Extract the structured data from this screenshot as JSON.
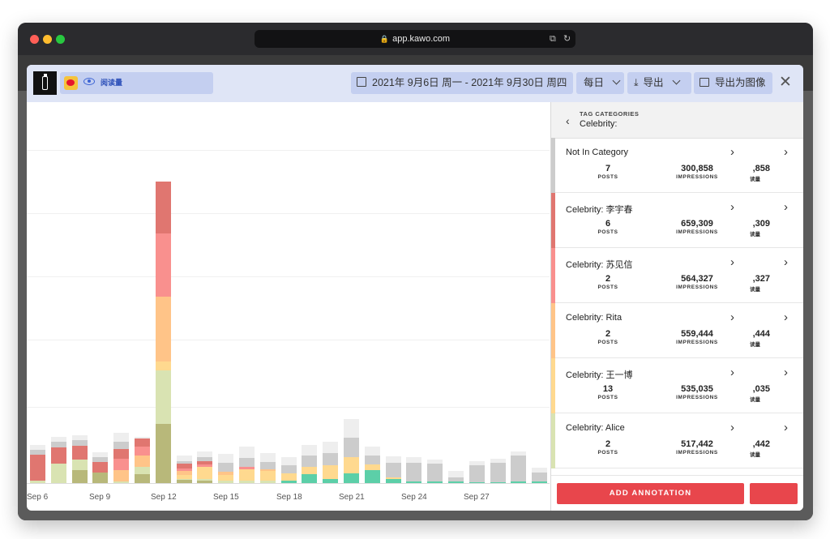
{
  "browser": {
    "url": "app.kawo.com",
    "traffic_lights": [
      "#ff5f57",
      "#febc2e",
      "#28c840"
    ]
  },
  "modal": {
    "metric_label": "阅读量",
    "date_range": "2021年 9月6日 周一 - 2021年 9月30日 周四",
    "interval": "每日",
    "export_label": "导出",
    "export_image_label": "导出为图像",
    "close": "✕"
  },
  "chart_data": {
    "type": "bar",
    "stacked": true,
    "x_tick_labels": [
      "Sep 6",
      "Sep 9",
      "Sep 12",
      "Sep 15",
      "Sep 18",
      "Sep 21",
      "Sep 24",
      "Sep 27"
    ],
    "categories": [
      "Sep 6",
      "Sep 7",
      "Sep 8",
      "Sep 9",
      "Sep 10",
      "Sep 11",
      "Sep 12",
      "Sep 13",
      "Sep 14",
      "Sep 15",
      "Sep 16",
      "Sep 17",
      "Sep 18",
      "Sep 19",
      "Sep 20",
      "Sep 21",
      "Sep 22",
      "Sep 23",
      "Sep 24",
      "Sep 25",
      "Sep 26",
      "Sep 27",
      "Sep 28",
      "Sep 29",
      "Sep 30"
    ],
    "ylim": [
      0,
      460
    ],
    "series": [
      {
        "color": "#b8b87a",
        "values": [
          0,
          0,
          18,
          14,
          0,
          12,
          80,
          4,
          3,
          0,
          0,
          0,
          0,
          0,
          0,
          0,
          0,
          0,
          0,
          0,
          0,
          0,
          0,
          0,
          0
        ]
      },
      {
        "color": "#5ccfa8",
        "values": [
          0,
          0,
          0,
          0,
          0,
          0,
          0,
          0,
          0,
          0,
          0,
          0,
          3,
          12,
          6,
          13,
          18,
          5,
          2,
          2,
          2,
          1,
          1,
          2,
          2
        ]
      },
      {
        "color": "#d9e3b2",
        "values": [
          3,
          26,
          14,
          0,
          2,
          10,
          73,
          2,
          3,
          3,
          3,
          3,
          0,
          0,
          0,
          0,
          0,
          0,
          0,
          0,
          0,
          0,
          0,
          0,
          0
        ]
      },
      {
        "color": "#ffd98f",
        "values": [
          0,
          0,
          0,
          0,
          0,
          0,
          12,
          5,
          16,
          8,
          16,
          14,
          10,
          10,
          18,
          22,
          7,
          3,
          0,
          0,
          0,
          0,
          0,
          0,
          0
        ]
      },
      {
        "color": "#ffc488",
        "values": [
          0,
          0,
          0,
          0,
          16,
          15,
          88,
          5,
          0,
          4,
          0,
          2,
          0,
          0,
          0,
          0,
          0,
          0,
          0,
          0,
          0,
          0,
          0,
          0,
          0
        ]
      },
      {
        "color": "#f9908e",
        "values": [
          0,
          0,
          0,
          0,
          15,
          13,
          86,
          4,
          3,
          0,
          3,
          0,
          0,
          0,
          0,
          0,
          0,
          0,
          0,
          0,
          0,
          0,
          0,
          0,
          0
        ]
      },
      {
        "color": "#e07670",
        "values": [
          35,
          22,
          19,
          15,
          13,
          10,
          70,
          6,
          5,
          0,
          0,
          0,
          0,
          0,
          0,
          0,
          0,
          0,
          0,
          0,
          0,
          0,
          0,
          0,
          0
        ]
      },
      {
        "color": "#cccccc",
        "values": [
          7,
          8,
          7,
          6,
          10,
          0,
          0,
          4,
          5,
          12,
          12,
          10,
          11,
          15,
          17,
          27,
          12,
          20,
          25,
          24,
          6,
          23,
          26,
          35,
          12
        ]
      },
      {
        "color": "#eeeeee",
        "values": [
          7,
          7,
          7,
          7,
          12,
          3,
          0,
          7,
          8,
          13,
          15,
          12,
          11,
          15,
          15,
          25,
          12,
          8,
          8,
          6,
          8,
          6,
          6,
          6,
          7
        ]
      }
    ]
  },
  "panel": {
    "header_title": "TAG CATEGORIES",
    "header_subtitle": "Celebrity:",
    "rows": [
      {
        "name": "Not In Category",
        "color": "#cccccc",
        "posts": "7",
        "posts_label": "POSTS",
        "impressions": "300,858",
        "impressions_label": "IMPRESSIONS",
        "partial": ",858",
        "partial_label": "读量"
      },
      {
        "name": "Celebrity: 李宇春",
        "color": "#e07670",
        "posts": "6",
        "posts_label": "POSTS",
        "impressions": "659,309",
        "impressions_label": "IMPRESSIONS",
        "partial": ",309",
        "partial_label": "读量"
      },
      {
        "name": "Celebrity: 苏见信",
        "color": "#f9908e",
        "posts": "2",
        "posts_label": "POSTS",
        "impressions": "564,327",
        "impressions_label": "IMPRESSIONS",
        "partial": ",327",
        "partial_label": "读量"
      },
      {
        "name": "Celebrity: Rita",
        "color": "#ffc488",
        "posts": "2",
        "posts_label": "POSTS",
        "impressions": "559,444",
        "impressions_label": "IMPRESSIONS",
        "partial": ",444",
        "partial_label": "读量"
      },
      {
        "name": "Celebrity: 王一博",
        "color": "#ffd98f",
        "posts": "13",
        "posts_label": "POSTS",
        "impressions": "535,035",
        "impressions_label": "IMPRESSIONS",
        "partial": ",035",
        "partial_label": "读量"
      },
      {
        "name": "Celebrity:  Alice",
        "color": "#d9e3b2",
        "posts": "2",
        "posts_label": "POSTS",
        "impressions": "517,442",
        "impressions_label": "IMPRESSIONS",
        "partial": ",442",
        "partial_label": "读量"
      }
    ],
    "annotation_button": "ADD ANNOTATION"
  }
}
